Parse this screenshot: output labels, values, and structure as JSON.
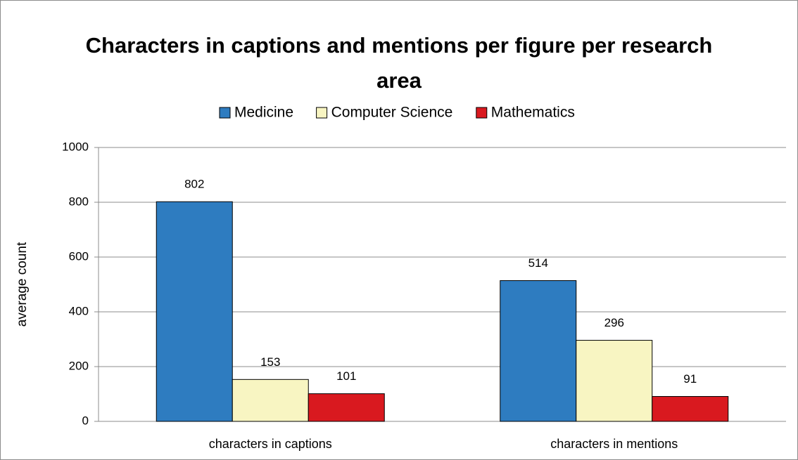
{
  "chart_data": {
    "type": "bar",
    "title": "Characters in captions and mentions per figure per research area",
    "y_label": "average  count",
    "categories": [
      "characters in captions",
      "characters in mentions"
    ],
    "series": [
      {
        "name": "Medicine",
        "color": "#2e7cc0",
        "values": [
          802,
          514
        ]
      },
      {
        "name": "Computer Science",
        "color": "#f8f5c2",
        "values": [
          153,
          296
        ]
      },
      {
        "name": "Mathematics",
        "color": "#d9191f",
        "values": [
          101,
          91
        ]
      }
    ],
    "ylim": [
      0,
      1000
    ],
    "yticks": [
      0,
      200,
      400,
      600,
      800,
      1000
    ],
    "grid": true,
    "legend": "top"
  }
}
